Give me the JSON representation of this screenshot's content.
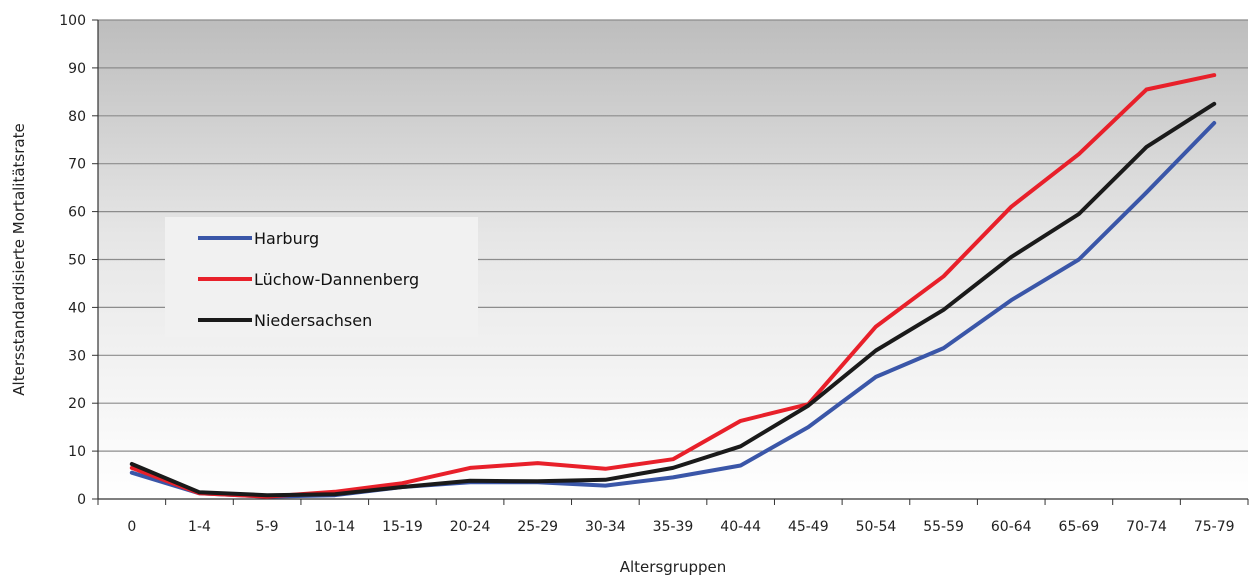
{
  "chart_data": {
    "type": "line",
    "title": "",
    "xlabel": "Altersgruppen",
    "ylabel": "Altersstandardisierte Mortalitätsrate",
    "ylim": [
      0,
      100
    ],
    "yticks": [
      0,
      10,
      20,
      30,
      40,
      50,
      60,
      70,
      80,
      90,
      100
    ],
    "grid": true,
    "legend_position": "left-center",
    "categories": [
      "0",
      "1-4",
      "5-9",
      "10-14",
      "15-19",
      "20-24",
      "25-29",
      "30-34",
      "35-39",
      "40-44",
      "45-49",
      "50-54",
      "55-59",
      "60-64",
      "65-69",
      "70-74",
      "75-79"
    ],
    "series": [
      {
        "name": "Harburg",
        "color": "#3a56a8",
        "values": [
          5.5,
          1.2,
          0.5,
          0.8,
          2.5,
          3.5,
          3.5,
          2.8,
          4.5,
          7.0,
          15.0,
          25.5,
          31.5,
          41.5,
          50.0,
          64.0,
          78.5
        ]
      },
      {
        "name": "Lüchow-Dannenberg",
        "color": "#e8202a",
        "values": [
          6.5,
          1.2,
          0.5,
          1.5,
          3.3,
          6.5,
          7.5,
          6.3,
          8.3,
          16.3,
          19.8,
          36.0,
          46.5,
          61.0,
          72.0,
          85.5,
          88.5
        ]
      },
      {
        "name": "Niedersachsen",
        "color": "#1a1a1a",
        "values": [
          7.3,
          1.4,
          0.8,
          1.0,
          2.5,
          3.8,
          3.7,
          4.0,
          6.5,
          11.0,
          19.5,
          31.0,
          39.5,
          50.5,
          59.5,
          73.5,
          82.5
        ]
      }
    ]
  }
}
